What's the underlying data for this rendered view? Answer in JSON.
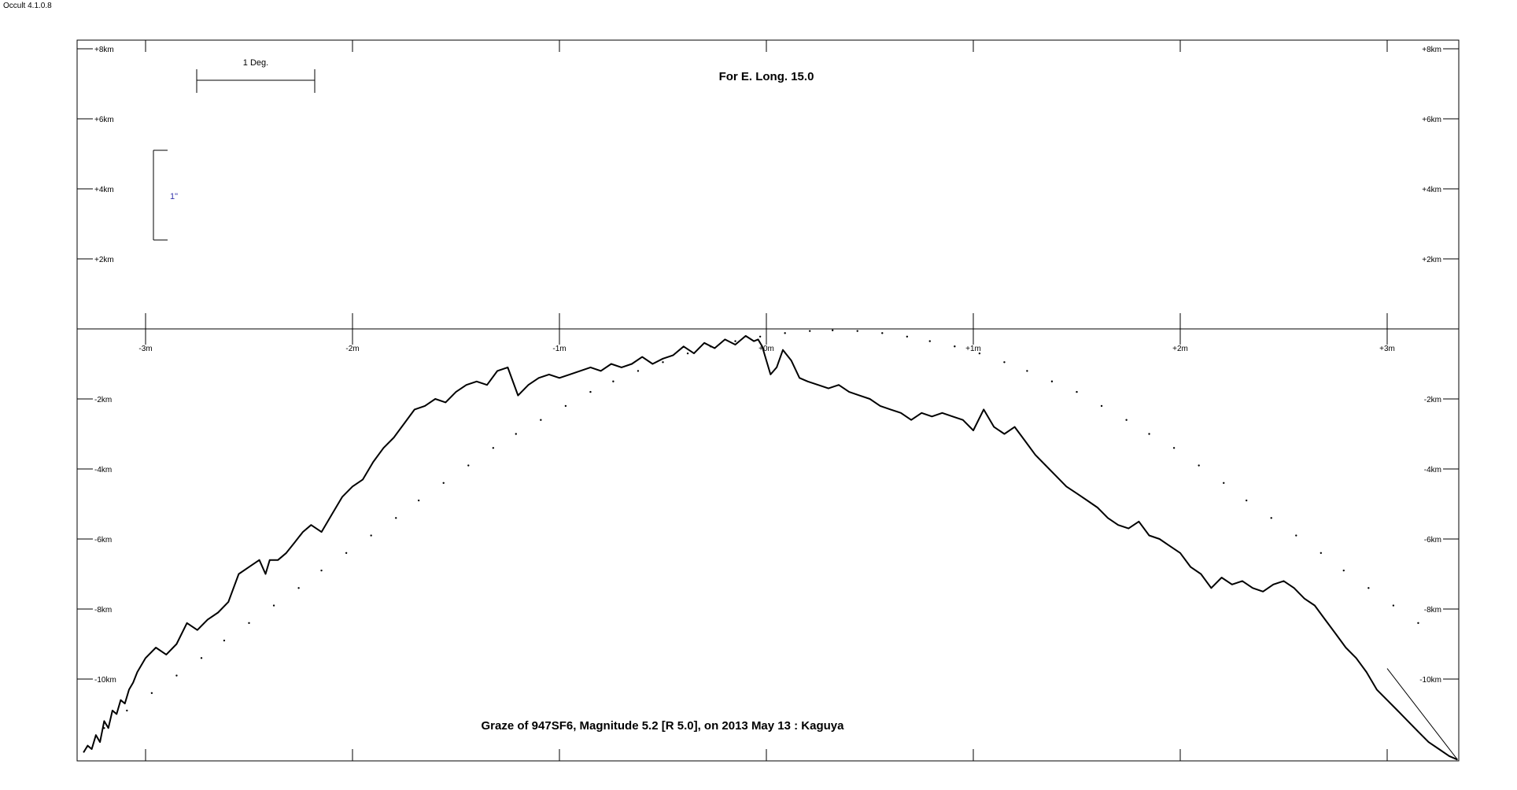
{
  "app": {
    "version": "Occult 4.1.0.8"
  },
  "chart_data": {
    "type": "line",
    "title": "Graze of  947SF6,  Magnitude 5.2 [R 5.0],  on 2013 May 13  :  Kaguya",
    "subtitle": "For E. Long. 15.0",
    "scale_bar_deg_label": "1 Deg.",
    "scale_bar_arcsec_label": "1\"",
    "xlim": [
      -3.34,
      3.34
    ],
    "ylim": [
      -12.3,
      8.2
    ],
    "x_ticks": [
      {
        "value": -3,
        "label": "-3m"
      },
      {
        "value": -2,
        "label": "-2m"
      },
      {
        "value": -1,
        "label": "-1m"
      },
      {
        "value": 0,
        "label": "+0m"
      },
      {
        "value": 1,
        "label": "+1m"
      },
      {
        "value": 2,
        "label": "+2m"
      },
      {
        "value": 3,
        "label": "+3m"
      }
    ],
    "y_ticks": [
      {
        "value": 8,
        "label": "+8km"
      },
      {
        "value": 6,
        "label": "+6km"
      },
      {
        "value": 4,
        "label": "+4km"
      },
      {
        "value": 2,
        "label": "+2km"
      },
      {
        "value": -2,
        "label": "-2km"
      },
      {
        "value": -4,
        "label": "-4km"
      },
      {
        "value": -6,
        "label": "-6km"
      },
      {
        "value": -8,
        "label": "-8km"
      },
      {
        "value": -10,
        "label": "-10km"
      }
    ],
    "series": [
      {
        "role": "limb-profile",
        "color": "#000000",
        "x": [
          -3.3,
          -3.28,
          -3.26,
          -3.24,
          -3.22,
          -3.2,
          -3.18,
          -3.16,
          -3.14,
          -3.12,
          -3.1,
          -3.08,
          -3.06,
          -3.04,
          -3.0,
          -2.95,
          -2.9,
          -2.85,
          -2.8,
          -2.75,
          -2.7,
          -2.65,
          -2.6,
          -2.55,
          -2.5,
          -2.45,
          -2.42,
          -2.4,
          -2.36,
          -2.32,
          -2.28,
          -2.24,
          -2.2,
          -2.15,
          -2.1,
          -2.05,
          -2.0,
          -1.95,
          -1.9,
          -1.85,
          -1.8,
          -1.75,
          -1.7,
          -1.65,
          -1.6,
          -1.55,
          -1.5,
          -1.45,
          -1.4,
          -1.35,
          -1.3,
          -1.25,
          -1.2,
          -1.15,
          -1.1,
          -1.05,
          -1.0,
          -0.95,
          -0.9,
          -0.85,
          -0.8,
          -0.75,
          -0.7,
          -0.65,
          -0.6,
          -0.55,
          -0.5,
          -0.45,
          -0.4,
          -0.35,
          -0.3,
          -0.25,
          -0.2,
          -0.15,
          -0.1,
          -0.06,
          -0.04,
          -0.02,
          0.0,
          0.02,
          0.05,
          0.08,
          0.12,
          0.16,
          0.2,
          0.25,
          0.3,
          0.35,
          0.4,
          0.45,
          0.5,
          0.55,
          0.6,
          0.65,
          0.7,
          0.75,
          0.8,
          0.85,
          0.9,
          0.95,
          1.0,
          1.05,
          1.1,
          1.15,
          1.2,
          1.25,
          1.3,
          1.35,
          1.4,
          1.45,
          1.5,
          1.55,
          1.6,
          1.65,
          1.7,
          1.75,
          1.8,
          1.85,
          1.9,
          1.95,
          2.0,
          2.05,
          2.1,
          2.15,
          2.2,
          2.25,
          2.3,
          2.35,
          2.4,
          2.45,
          2.5,
          2.55,
          2.6,
          2.65,
          2.7,
          2.75,
          2.8,
          2.85,
          2.9,
          2.95,
          3.0,
          3.05,
          3.1,
          3.15,
          3.2,
          3.25,
          3.3,
          3.34
        ],
        "y": [
          -12.1,
          -11.9,
          -12.0,
          -11.6,
          -11.8,
          -11.2,
          -11.4,
          -10.9,
          -11.0,
          -10.6,
          -10.7,
          -10.3,
          -10.1,
          -9.8,
          -9.4,
          -9.1,
          -9.3,
          -9.0,
          -8.4,
          -8.6,
          -8.3,
          -8.1,
          -7.8,
          -7.0,
          -6.8,
          -6.6,
          -7.0,
          -6.6,
          -6.6,
          -6.4,
          -6.1,
          -5.8,
          -5.6,
          -5.8,
          -5.3,
          -4.8,
          -4.5,
          -4.3,
          -3.8,
          -3.4,
          -3.1,
          -2.7,
          -2.3,
          -2.2,
          -2.0,
          -2.1,
          -1.8,
          -1.6,
          -1.5,
          -1.6,
          -1.2,
          -1.1,
          -1.9,
          -1.6,
          -1.4,
          -1.3,
          -1.4,
          -1.3,
          -1.2,
          -1.1,
          -1.2,
          -1.0,
          -1.1,
          -1.0,
          -0.8,
          -1.0,
          -0.85,
          -0.75,
          -0.5,
          -0.7,
          -0.4,
          -0.55,
          -0.3,
          -0.45,
          -0.2,
          -0.35,
          -0.3,
          -0.5,
          -0.9,
          -1.3,
          -1.1,
          -0.6,
          -0.9,
          -1.4,
          -1.5,
          -1.6,
          -1.7,
          -1.6,
          -1.8,
          -1.9,
          -2.0,
          -2.2,
          -2.3,
          -2.4,
          -2.6,
          -2.4,
          -2.5,
          -2.4,
          -2.5,
          -2.6,
          -2.9,
          -2.3,
          -2.8,
          -3.0,
          -2.8,
          -3.2,
          -3.6,
          -3.9,
          -4.2,
          -4.5,
          -4.7,
          -4.9,
          -5.1,
          -5.4,
          -5.6,
          -5.7,
          -5.5,
          -5.9,
          -6.0,
          -6.2,
          -6.4,
          -6.8,
          -7.0,
          -7.4,
          -7.1,
          -7.3,
          -7.2,
          -7.4,
          -7.5,
          -7.3,
          -7.2,
          -7.4,
          -7.7,
          -7.9,
          -8.3,
          -8.7,
          -9.1,
          -9.4,
          -9.8,
          -10.3,
          -10.6,
          -10.9,
          -11.2,
          -11.5,
          -11.8,
          -12.0,
          -12.2,
          -12.3
        ]
      },
      {
        "role": "mean-limb-dots",
        "color": "#000000",
        "x": [
          -3.2,
          -3.09,
          -2.97,
          -2.85,
          -2.73,
          -2.62,
          -2.5,
          -2.38,
          -2.26,
          -2.15,
          -2.03,
          -1.91,
          -1.79,
          -1.68,
          -1.56,
          -1.44,
          -1.32,
          -1.21,
          -1.09,
          -0.97,
          -0.85,
          -0.74,
          -0.62,
          -0.5,
          -0.38,
          -0.27,
          -0.15,
          -0.03,
          0.09,
          0.21,
          0.32,
          0.44,
          0.56,
          0.68,
          0.79,
          0.91,
          1.03,
          1.15,
          1.26,
          1.38,
          1.5,
          1.62,
          1.74,
          1.85,
          1.97,
          2.09,
          2.21,
          2.32,
          2.44,
          2.56,
          2.68,
          2.79,
          2.91,
          3.03,
          3.15
        ],
        "y": [
          -11.4,
          -10.9,
          -10.4,
          -9.9,
          -9.4,
          -8.9,
          -8.4,
          -7.9,
          -7.4,
          -6.9,
          -6.4,
          -5.9,
          -5.4,
          -4.9,
          -4.4,
          -3.9,
          -3.4,
          -3.0,
          -2.6,
          -2.2,
          -1.8,
          -1.5,
          -1.2,
          -0.95,
          -0.7,
          -0.5,
          -0.35,
          -0.22,
          -0.12,
          -0.06,
          -0.04,
          -0.06,
          -0.12,
          -0.22,
          -0.35,
          -0.5,
          -0.7,
          -0.95,
          -1.2,
          -1.5,
          -1.8,
          -2.2,
          -2.6,
          -3.0,
          -3.4,
          -3.9,
          -4.4,
          -4.9,
          -5.4,
          -5.9,
          -6.4,
          -6.9,
          -7.4,
          -7.9,
          -8.4
        ]
      },
      {
        "role": "limit-line",
        "color": "#000000",
        "x": [
          3.0,
          3.34
        ],
        "y": [
          -9.7,
          -12.3
        ]
      }
    ]
  }
}
